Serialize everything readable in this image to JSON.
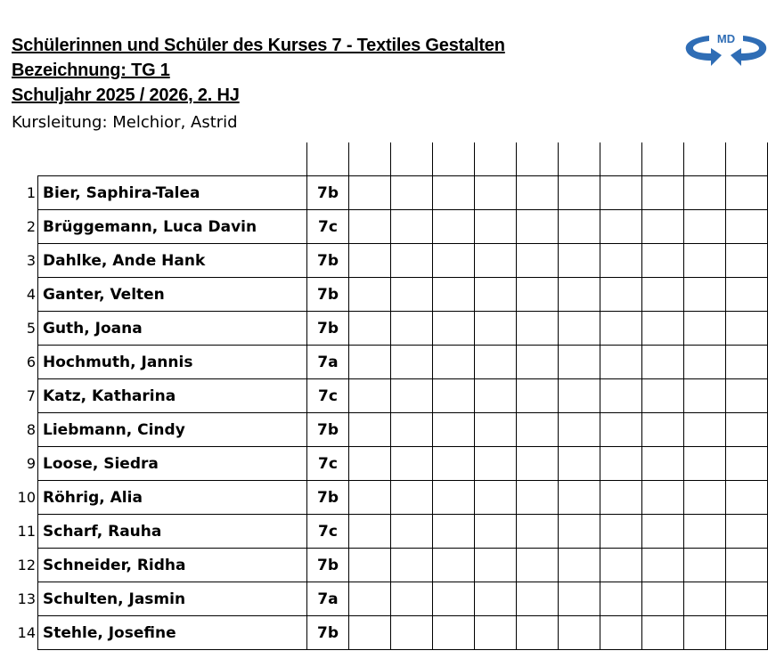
{
  "header": {
    "title": "Schülerinnen und Schüler des Kurses 7 - Textiles Gestalten",
    "designation": "Bezeichnung: TG 1",
    "school_year": "Schuljahr 2025 / 2026, 2. HJ",
    "course_lead": "Kursleitung: Melchior, Astrid"
  },
  "logo": {
    "text": "MD",
    "color": "#2f6db5"
  },
  "students": [
    {
      "n": "1",
      "name": "Bier, Saphira-Talea",
      "class": "7b"
    },
    {
      "n": "2",
      "name": "Brüggemann, Luca Davin",
      "class": "7c"
    },
    {
      "n": "3",
      "name": "Dahlke, Ande Hank",
      "class": "7b"
    },
    {
      "n": "4",
      "name": "Ganter, Velten",
      "class": "7b"
    },
    {
      "n": "5",
      "name": "Guth, Joana",
      "class": "7b"
    },
    {
      "n": "6",
      "name": "Hochmuth, Jannis",
      "class": "7a"
    },
    {
      "n": "7",
      "name": "Katz, Katharina",
      "class": "7c"
    },
    {
      "n": "8",
      "name": "Liebmann, Cindy",
      "class": "7b"
    },
    {
      "n": "9",
      "name": "Loose, Siedra",
      "class": "7c"
    },
    {
      "n": "10",
      "name": "Röhrig, Alia",
      "class": "7b"
    },
    {
      "n": "11",
      "name": "Scharf, Rauha",
      "class": "7c"
    },
    {
      "n": "12",
      "name": "Schneider, Ridha",
      "class": "7b"
    },
    {
      "n": "13",
      "name": "Schulten, Jasmin",
      "class": "7a"
    },
    {
      "n": "14",
      "name": "Stehle, Josefine",
      "class": "7b"
    }
  ]
}
